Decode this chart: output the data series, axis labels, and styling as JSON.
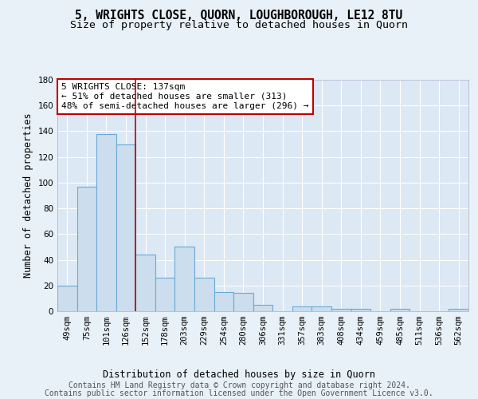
{
  "title": "5, WRIGHTS CLOSE, QUORN, LOUGHBOROUGH, LE12 8TU",
  "subtitle": "Size of property relative to detached houses in Quorn",
  "xlabel": "Distribution of detached houses by size in Quorn",
  "ylabel": "Number of detached properties",
  "categories": [
    "49sqm",
    "75sqm",
    "101sqm",
    "126sqm",
    "152sqm",
    "178sqm",
    "203sqm",
    "229sqm",
    "254sqm",
    "280sqm",
    "306sqm",
    "331sqm",
    "357sqm",
    "383sqm",
    "408sqm",
    "434sqm",
    "459sqm",
    "485sqm",
    "511sqm",
    "536sqm",
    "562sqm"
  ],
  "values": [
    20,
    97,
    138,
    130,
    44,
    26,
    50,
    26,
    15,
    14,
    5,
    0,
    4,
    4,
    2,
    2,
    0,
    2,
    0,
    0,
    2
  ],
  "bar_color": "#ccdded",
  "bar_edge_color": "#6aaad4",
  "vline_x": 3.5,
  "vline_color": "#c00000",
  "annotation_line1": "5 WRIGHTS CLOSE: 137sqm",
  "annotation_line2": "← 51% of detached houses are smaller (313)",
  "annotation_line3": "48% of semi-detached houses are larger (296) →",
  "annotation_box_color": "#ffffff",
  "annotation_box_edge_color": "#c00000",
  "ylim": [
    0,
    180
  ],
  "yticks": [
    0,
    20,
    40,
    60,
    80,
    100,
    120,
    140,
    160,
    180
  ],
  "footer_line1": "Contains HM Land Registry data © Crown copyright and database right 2024.",
  "footer_line2": "Contains public sector information licensed under the Open Government Licence v3.0.",
  "background_color": "#e8f0f8",
  "plot_background_color": "#dce8f4",
  "title_fontsize": 10.5,
  "subtitle_fontsize": 9.5,
  "axis_label_fontsize": 8.5,
  "tick_fontsize": 7.5,
  "annotation_fontsize": 8,
  "footer_fontsize": 7
}
